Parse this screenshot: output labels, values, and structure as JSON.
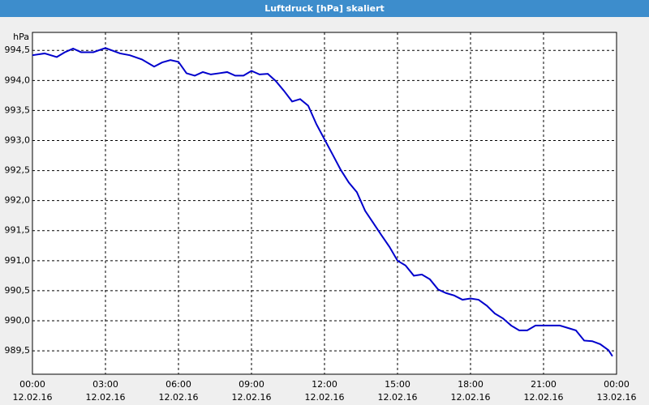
{
  "chart_data": {
    "type": "line",
    "title": "Luftdruck [hPa] skaliert",
    "y_label": "hPa",
    "x": [
      0,
      0.5,
      1,
      1.33,
      1.67,
      2,
      2.5,
      3,
      3.33,
      3.6,
      4,
      4.5,
      5,
      5.33,
      5.67,
      6,
      6.33,
      6.67,
      7,
      7.33,
      7.67,
      8,
      8.33,
      8.67,
      9,
      9.33,
      9.67,
      10,
      10.33,
      10.67,
      11,
      11.33,
      11.67,
      12,
      12.33,
      12.67,
      13,
      13.33,
      13.67,
      14,
      14.33,
      14.67,
      15,
      15.33,
      15.67,
      16,
      16.33,
      16.67,
      17,
      17.33,
      17.67,
      18,
      18.33,
      18.67,
      19,
      19.33,
      19.67,
      20,
      20.33,
      20.67,
      21,
      21.33,
      21.67,
      22,
      22.33,
      22.67,
      23,
      23.33,
      23.67,
      23.83
    ],
    "series": [
      {
        "name": "Luftdruck",
        "color": "#0000cc",
        "values": [
          994.42,
          994.45,
          994.39,
          994.47,
          994.53,
          994.47,
          994.47,
          994.54,
          994.49,
          994.45,
          994.42,
          994.35,
          994.23,
          994.3,
          994.34,
          994.31,
          994.12,
          994.08,
          994.14,
          994.1,
          994.12,
          994.14,
          994.08,
          994.08,
          994.16,
          994.1,
          994.11,
          993.99,
          993.83,
          993.65,
          993.69,
          993.58,
          993.27,
          993.02,
          992.77,
          992.51,
          992.3,
          992.14,
          991.83,
          991.63,
          991.43,
          991.23,
          991.0,
          990.92,
          990.75,
          990.77,
          990.69,
          990.52,
          990.46,
          990.42,
          990.35,
          990.37,
          990.35,
          990.25,
          990.12,
          990.04,
          989.92,
          989.84,
          989.84,
          989.92,
          989.92,
          989.92,
          989.92,
          989.88,
          989.84,
          989.67,
          989.66,
          989.61,
          989.51,
          989.41
        ]
      }
    ],
    "xlim": [
      0,
      24
    ],
    "xticks": [
      {
        "value": 0,
        "label": "00:00"
      },
      {
        "value": 3,
        "label": "03:00"
      },
      {
        "value": 6,
        "label": "06:00"
      },
      {
        "value": 9,
        "label": "09:00"
      },
      {
        "value": 12,
        "label": "12:00"
      },
      {
        "value": 15,
        "label": "15:00"
      },
      {
        "value": 18,
        "label": "18:00"
      },
      {
        "value": 21,
        "label": "21:00"
      },
      {
        "value": 24,
        "label": "00:00"
      }
    ],
    "xtick_dates": [
      "12.02.16",
      "12.02.16",
      "12.02.16",
      "12.02.16",
      "12.02.16",
      "12.02.16",
      "12.02.16",
      "12.02.16",
      "13.02.16"
    ],
    "ylim": [
      989.11,
      994.8
    ],
    "yticks": [
      {
        "value": 989.5,
        "label": "989,5"
      },
      {
        "value": 990,
        "label": "990,0"
      },
      {
        "value": 990.5,
        "label": "990,5"
      },
      {
        "value": 991,
        "label": "991,0"
      },
      {
        "value": 991.5,
        "label": "991,5"
      },
      {
        "value": 992,
        "label": "992,0"
      },
      {
        "value": 992.5,
        "label": "992,5"
      },
      {
        "value": 993,
        "label": "993,0"
      },
      {
        "value": 993.5,
        "label": "993,5"
      },
      {
        "value": 994,
        "label": "994,0"
      },
      {
        "value": 994.5,
        "label": "994,5"
      }
    ],
    "grid": true
  }
}
